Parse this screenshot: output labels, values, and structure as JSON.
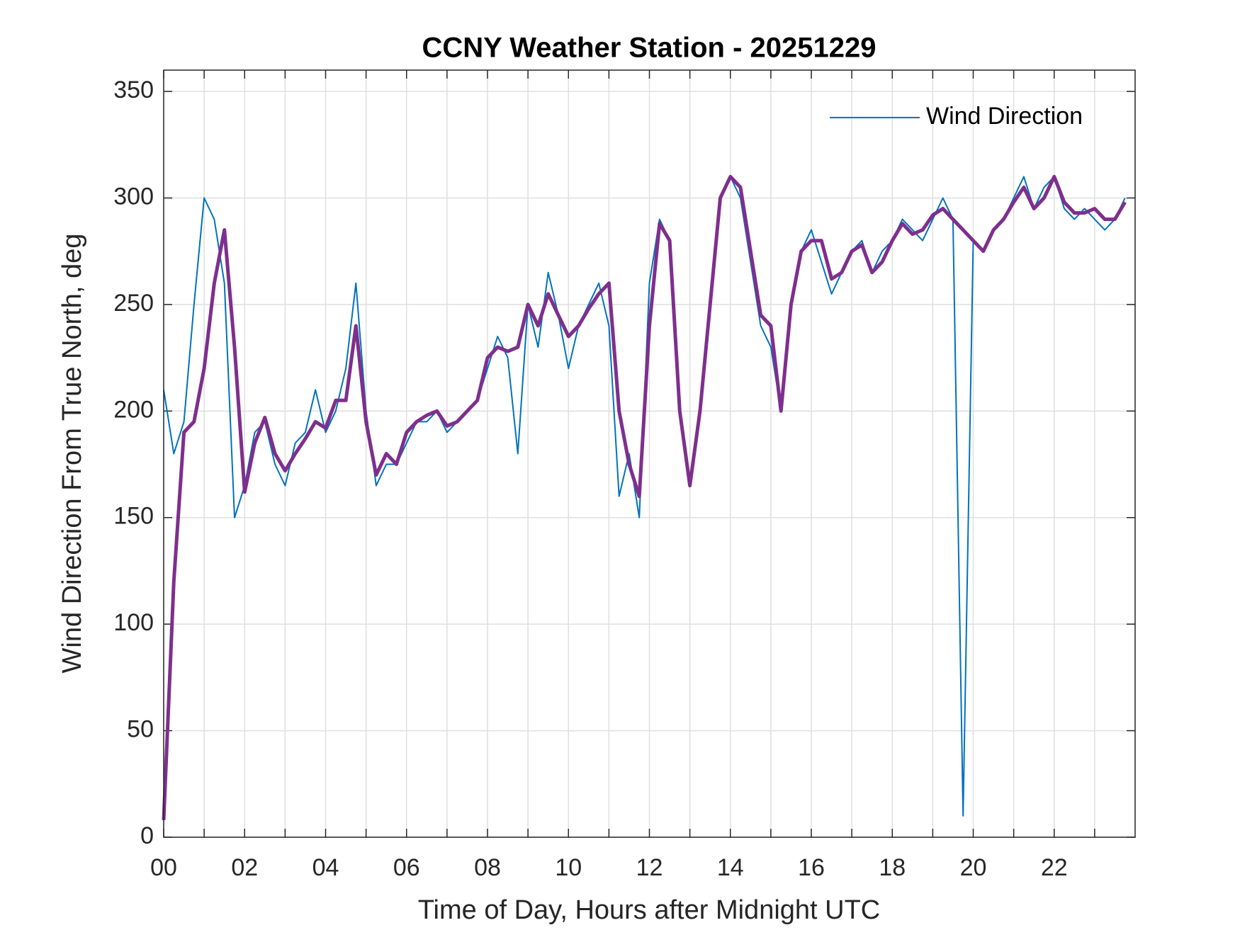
{
  "chart_data": {
    "type": "line",
    "title": "CCNY Weather Station - 20251229",
    "xlabel": "Time of Day, Hours after Midnight UTC",
    "ylabel": "Wind Direction From True North, deg",
    "x": [
      0,
      0.25,
      0.5,
      0.75,
      1,
      1.25,
      1.5,
      1.75,
      2,
      2.25,
      2.5,
      2.75,
      3,
      3.25,
      3.5,
      3.75,
      4,
      4.25,
      4.5,
      4.75,
      5,
      5.25,
      5.5,
      5.75,
      6,
      6.25,
      6.5,
      6.75,
      7,
      7.25,
      7.5,
      7.75,
      8,
      8.25,
      8.5,
      8.75,
      9,
      9.25,
      9.5,
      9.75,
      10,
      10.25,
      10.5,
      10.75,
      11,
      11.25,
      11.5,
      11.75,
      12,
      12.25,
      12.5,
      12.75,
      13,
      13.25,
      13.5,
      13.75,
      14,
      14.25,
      14.5,
      14.75,
      15,
      15.25,
      15.5,
      15.75,
      16,
      16.25,
      16.5,
      16.75,
      17,
      17.25,
      17.5,
      17.75,
      18,
      18.25,
      18.5,
      18.75,
      19,
      19.25,
      19.5,
      19.75,
      20,
      20.25,
      20.5,
      20.75,
      21,
      21.25,
      21.5,
      21.75,
      22,
      22.25,
      22.5,
      22.75,
      23,
      23.25,
      23.5,
      23.75
    ],
    "series": [
      {
        "name": "Wind Direction",
        "color": "#0072bd",
        "values": [
          210,
          180,
          195,
          250,
          300,
          290,
          260,
          150,
          165,
          190,
          195,
          175,
          165,
          185,
          190,
          210,
          190,
          200,
          220,
          260,
          200,
          165,
          175,
          175,
          185,
          195,
          195,
          200,
          190,
          195,
          200,
          205,
          220,
          235,
          225,
          180,
          250,
          230,
          265,
          245,
          220,
          240,
          250,
          260,
          240,
          160,
          180,
          150,
          260,
          290,
          280,
          200,
          165,
          200,
          250,
          300,
          310,
          300,
          270,
          240,
          230,
          200,
          250,
          275,
          285,
          270,
          255,
          265,
          275,
          280,
          265,
          275,
          280,
          290,
          285,
          280,
          290,
          300,
          290,
          10,
          280,
          275,
          285,
          290,
          300,
          310,
          295,
          305,
          310,
          295,
          290,
          295,
          290,
          285,
          290,
          300
        ]
      },
      {
        "color": "#7e2f8e",
        "values": [
          8,
          120,
          190,
          195,
          220,
          260,
          285,
          230,
          162,
          185,
          197,
          180,
          172,
          180,
          187,
          195,
          192,
          205,
          205,
          240,
          195,
          170,
          180,
          175,
          190,
          195,
          198,
          200,
          193,
          195,
          200,
          205,
          225,
          230,
          228,
          230,
          250,
          240,
          255,
          245,
          235,
          240,
          248,
          255,
          260,
          200,
          175,
          160,
          240,
          288,
          280,
          200,
          165,
          200,
          250,
          300,
          310,
          305,
          275,
          245,
          240,
          200,
          250,
          275,
          280,
          280,
          262,
          265,
          275,
          278,
          265,
          270,
          280,
          288,
          283,
          285,
          292,
          295,
          290,
          285,
          280,
          275,
          285,
          290,
          298,
          305,
          295,
          300,
          310,
          298,
          293,
          293,
          295,
          290,
          290,
          298
        ]
      }
    ],
    "xlim": [
      0,
      24
    ],
    "xticks": [
      {
        "value": 0,
        "label": "00"
      },
      {
        "value": 2,
        "label": "02"
      },
      {
        "value": 4,
        "label": "04"
      },
      {
        "value": 6,
        "label": "06"
      },
      {
        "value": 8,
        "label": "08"
      },
      {
        "value": 10,
        "label": "10"
      },
      {
        "value": 12,
        "label": "12"
      },
      {
        "value": 14,
        "label": "14"
      },
      {
        "value": 16,
        "label": "16"
      },
      {
        "value": 18,
        "label": "18"
      },
      {
        "value": 20,
        "label": "20"
      },
      {
        "value": 22,
        "label": "22"
      }
    ],
    "xminor_ticks": [
      1,
      3,
      5,
      7,
      9,
      11,
      13,
      15,
      17,
      19,
      21,
      23
    ],
    "ylim": [
      0,
      360
    ],
    "yticks": [
      0,
      50,
      100,
      150,
      200,
      250,
      300,
      350
    ],
    "grid": true,
    "legend": "northeast"
  }
}
